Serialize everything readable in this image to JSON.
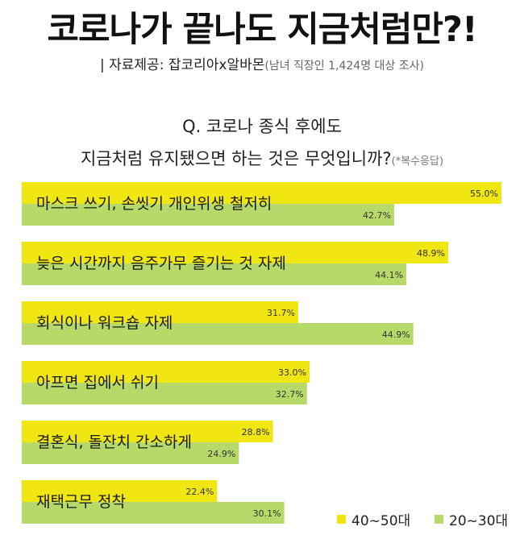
{
  "header": {
    "title": "코로나가 끝나도 지금처럼만?!",
    "source_prefix": "| 자료제공: 잡코리아x알바몬",
    "source_detail": "(남녀 직장인 1,424명 대상 조사)"
  },
  "question": {
    "line1": "Q. 코로나 종식 후에도",
    "line2": "지금처럼 유지됐으면 하는 것은 무엇입니까?",
    "note": "(*복수응답)"
  },
  "colors": {
    "series_40_50": "#f0e612",
    "series_20_30": "#b6d96a",
    "text": "#1a1a1a"
  },
  "chart_data": {
    "type": "bar",
    "orientation": "horizontal",
    "categories": [
      "마스크 쓰기, 손씻기 개인위생 철저히",
      "늦은 시간까지 음주가무 즐기는 것 자제",
      "회식이나 워크숍 자제",
      "아프면 집에서 쉬기",
      "결혼식, 돌잔치 간소하게",
      "재택근무 정착"
    ],
    "series": [
      {
        "name": "40~50대",
        "values": [
          55.0,
          48.9,
          31.7,
          33.0,
          28.8,
          22.4
        ],
        "labels": [
          "55.0%",
          "48.9%",
          "31.7%",
          "33.0%",
          "28.8%",
          "22.4%"
        ]
      },
      {
        "name": "20~30대",
        "values": [
          42.7,
          44.1,
          44.9,
          32.7,
          24.9,
          30.1
        ],
        "labels": [
          "42.7%",
          "44.1%",
          "44.9%",
          "32.7%",
          "24.9%",
          "30.1%"
        ]
      }
    ],
    "unit": "%",
    "legend_position": "bottom-right"
  }
}
